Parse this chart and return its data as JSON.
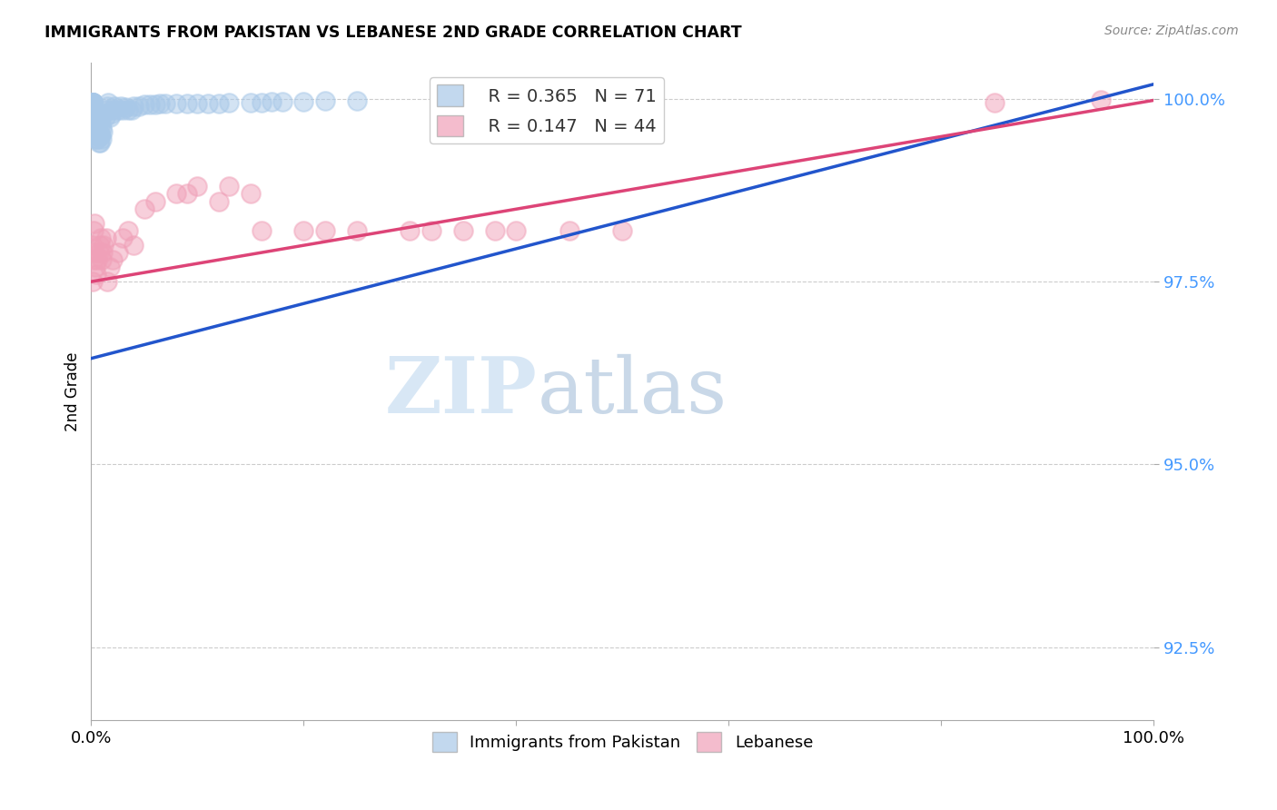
{
  "title": "IMMIGRANTS FROM PAKISTAN VS LEBANESE 2ND GRADE CORRELATION CHART",
  "source": "Source: ZipAtlas.com",
  "ylabel": "2nd Grade",
  "xlim": [
    0.0,
    1.0
  ],
  "ylim": [
    0.915,
    1.005
  ],
  "yticks": [
    0.925,
    0.95,
    0.975,
    1.0
  ],
  "ytick_labels": [
    "92.5%",
    "95.0%",
    "97.5%",
    "100.0%"
  ],
  "legend_r1": "R = 0.365",
  "legend_n1": "N = 71",
  "legend_r2": "R = 0.147",
  "legend_n2": "N = 44",
  "color_blue": "#a8c8e8",
  "color_pink": "#f0a0b8",
  "line_blue": "#2255cc",
  "line_pink": "#dd4477",
  "watermark_zip": "ZIP",
  "watermark_atlas": "atlas",
  "blue_x": [
    0.001,
    0.001,
    0.001,
    0.001,
    0.001,
    0.001,
    0.001,
    0.001,
    0.001,
    0.001,
    0.002,
    0.002,
    0.002,
    0.002,
    0.002,
    0.003,
    0.003,
    0.003,
    0.003,
    0.004,
    0.004,
    0.004,
    0.005,
    0.005,
    0.005,
    0.006,
    0.006,
    0.007,
    0.007,
    0.008,
    0.008,
    0.009,
    0.009,
    0.01,
    0.01,
    0.011,
    0.012,
    0.013,
    0.014,
    0.015,
    0.016,
    0.018,
    0.019,
    0.02,
    0.022,
    0.025,
    0.028,
    0.03,
    0.032,
    0.035,
    0.038,
    0.04,
    0.045,
    0.05,
    0.055,
    0.06,
    0.065,
    0.07,
    0.08,
    0.09,
    0.1,
    0.11,
    0.12,
    0.13,
    0.15,
    0.16,
    0.17,
    0.18,
    0.2,
    0.22,
    0.25
  ],
  "blue_y": [
    0.9995,
    0.9995,
    0.9995,
    0.9995,
    0.9995,
    0.9995,
    0.9995,
    0.999,
    0.9985,
    0.998,
    0.999,
    0.9985,
    0.997,
    0.9965,
    0.996,
    0.9985,
    0.9975,
    0.996,
    0.995,
    0.998,
    0.9965,
    0.9955,
    0.997,
    0.996,
    0.9945,
    0.996,
    0.9945,
    0.9955,
    0.994,
    0.995,
    0.994,
    0.9965,
    0.995,
    0.9945,
    0.996,
    0.9955,
    0.998,
    0.9975,
    0.9985,
    0.999,
    0.9995,
    0.9975,
    0.998,
    0.9985,
    0.999,
    0.9985,
    0.999,
    0.9985,
    0.9988,
    0.9985,
    0.9985,
    0.999,
    0.999,
    0.9992,
    0.9992,
    0.9992,
    0.9993,
    0.9993,
    0.9994,
    0.9993,
    0.9994,
    0.9994,
    0.9994,
    0.9995,
    0.9995,
    0.9995,
    0.9996,
    0.9996,
    0.9996,
    0.9997,
    0.9997
  ],
  "pink_x": [
    0.001,
    0.001,
    0.002,
    0.002,
    0.003,
    0.003,
    0.004,
    0.005,
    0.006,
    0.007,
    0.008,
    0.009,
    0.01,
    0.011,
    0.012,
    0.014,
    0.015,
    0.018,
    0.02,
    0.025,
    0.03,
    0.035,
    0.04,
    0.05,
    0.06,
    0.08,
    0.09,
    0.1,
    0.12,
    0.13,
    0.15,
    0.16,
    0.2,
    0.22,
    0.25,
    0.3,
    0.32,
    0.35,
    0.38,
    0.4,
    0.45,
    0.5,
    0.85,
    0.95
  ],
  "pink_y": [
    0.98,
    0.975,
    0.982,
    0.978,
    0.983,
    0.979,
    0.977,
    0.976,
    0.978,
    0.979,
    0.98,
    0.981,
    0.978,
    0.979,
    0.98,
    0.981,
    0.975,
    0.977,
    0.978,
    0.979,
    0.981,
    0.982,
    0.98,
    0.985,
    0.986,
    0.987,
    0.987,
    0.988,
    0.986,
    0.988,
    0.987,
    0.982,
    0.982,
    0.982,
    0.982,
    0.982,
    0.982,
    0.982,
    0.982,
    0.982,
    0.982,
    0.982,
    0.9995,
    0.9998
  ],
  "blue_line_x": [
    0.0,
    1.0
  ],
  "blue_line_y": [
    0.9645,
    1.002
  ],
  "pink_line_x": [
    0.0,
    1.0
  ],
  "pink_line_y": [
    0.975,
    0.9998
  ]
}
